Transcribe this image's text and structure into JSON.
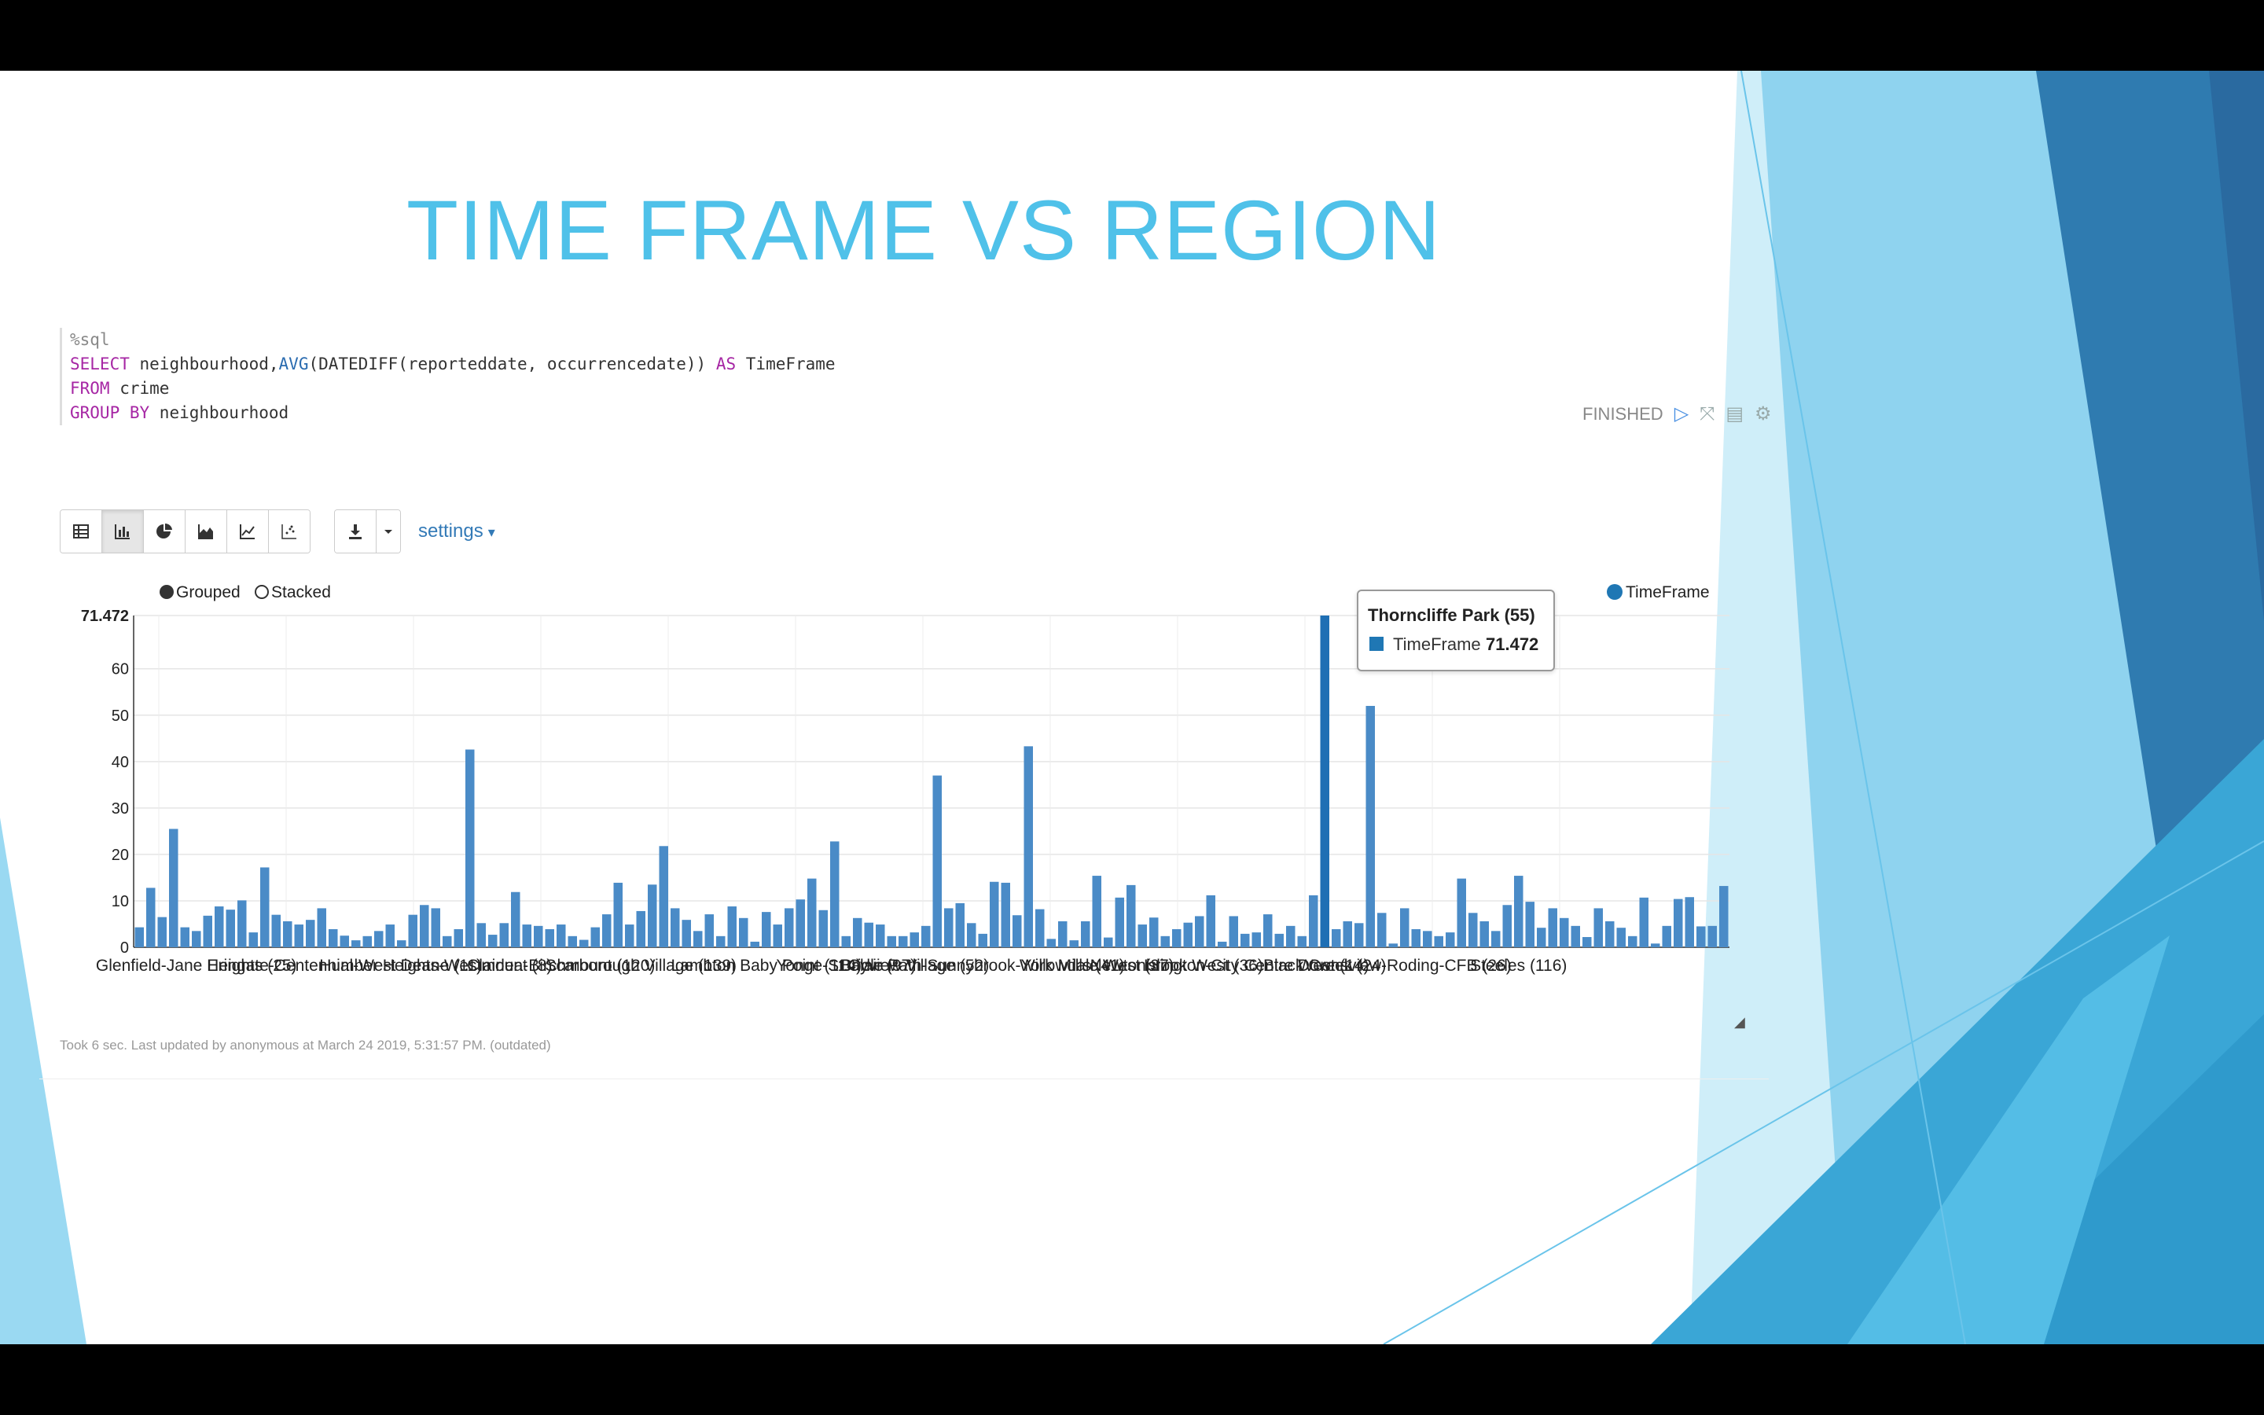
{
  "slide": {
    "title": "TIME FRAME VS REGION"
  },
  "code": {
    "lines": [
      {
        "parts": [
          {
            "t": "%sql",
            "c": "cm"
          }
        ]
      },
      {
        "parts": [
          {
            "t": "SELECT ",
            "c": "kw"
          },
          {
            "t": "neighbourhood,",
            "c": ""
          },
          {
            "t": "AVG",
            "c": "fn"
          },
          {
            "t": "(DATEDIFF(reporteddate, occurrencedate)) ",
            "c": ""
          },
          {
            "t": "AS ",
            "c": "kw"
          },
          {
            "t": "TimeFrame",
            "c": ""
          }
        ]
      },
      {
        "parts": [
          {
            "t": "FROM ",
            "c": "kw"
          },
          {
            "t": "crime",
            "c": ""
          }
        ]
      },
      {
        "parts": [
          {
            "t": "GROUP BY ",
            "c": "kw"
          },
          {
            "t": "neighbourhood",
            "c": ""
          }
        ]
      }
    ]
  },
  "status": {
    "label": "FINISHED"
  },
  "toolbar": {
    "settings_label": "settings",
    "buttons": [
      "table-icon",
      "bar-chart-icon",
      "pie-chart-icon",
      "area-chart-icon",
      "line-chart-icon",
      "scatter-chart-icon"
    ],
    "active": "bar-chart-icon"
  },
  "controls": {
    "grouped_label": "Grouped",
    "stacked_label": "Stacked",
    "grouped_selected": true
  },
  "tooltip": {
    "title": "Thorncliffe Park (55)",
    "series": "TimeFrame",
    "value": "71.472"
  },
  "footer": {
    "note": "Took 6 sec. Last updated by anonymous at March 24 2019, 5:31:57 PM. (outdated)"
  },
  "colors": {
    "bar": "#4a8bc7",
    "highlight": "#1f6fb4",
    "accent": "#4fc1e9"
  },
  "chart_data": {
    "type": "bar",
    "title": "",
    "xlabel": "",
    "ylabel": "",
    "ylim": [
      0,
      71.472
    ],
    "yticks": [
      0,
      10,
      20,
      30,
      40,
      50,
      60,
      71.472
    ],
    "ytick_labels": [
      "0",
      "10",
      "20",
      "30",
      "40",
      "50",
      "60",
      "71.472"
    ],
    "grid": true,
    "legend_position": "top-right",
    "series": [
      {
        "name": "TimeFrame",
        "values": [
          4.3,
          12.8,
          6.5,
          25.5,
          4.3,
          3.5,
          6.8,
          8.8,
          8.1,
          10.1,
          3.2,
          17.2,
          7.0,
          5.6,
          4.9,
          5.9,
          8.4,
          3.9,
          2.5,
          1.5,
          2.4,
          3.5,
          4.9,
          1.5,
          7.0,
          9.1,
          8.4,
          2.4,
          3.9,
          42.6,
          5.2,
          2.7,
          5.2,
          11.9,
          4.9,
          4.6,
          3.9,
          4.9,
          2.4,
          1.6,
          4.3,
          7.1,
          13.9,
          4.9,
          7.8,
          13.5,
          21.8,
          8.4,
          5.9,
          3.5,
          7.1,
          2.4,
          8.8,
          6.3,
          1.2,
          7.6,
          4.9,
          8.4,
          10.3,
          14.8,
          8.0,
          22.8,
          2.4,
          6.3,
          5.3,
          4.9,
          2.4,
          2.4,
          3.2,
          4.6,
          37.0,
          8.4,
          9.5,
          5.2,
          2.9,
          14.1,
          13.9,
          6.9,
          43.3,
          8.2,
          1.8,
          5.6,
          1.5,
          5.6,
          15.4,
          2.1,
          10.7,
          13.4,
          4.9,
          6.4,
          2.4,
          3.9,
          5.3,
          6.7,
          11.2,
          1.2,
          6.7,
          2.9,
          3.2,
          7.1,
          2.9,
          4.6,
          2.4,
          11.2,
          71.472,
          3.9,
          5.6,
          5.2,
          52.0,
          7.4,
          0.8,
          8.4,
          3.9,
          3.5,
          2.4,
          3.2,
          14.8,
          7.4,
          5.6,
          3.5,
          9.1,
          15.4,
          9.8,
          4.2,
          8.4,
          6.3,
          4.6,
          2.2,
          8.4,
          5.6,
          4.2,
          2.4,
          10.7,
          0.8,
          4.6,
          10.4,
          10.8,
          4.5,
          4.6,
          13.2
        ]
      }
    ],
    "highlight_index": 104,
    "x_tick_labels": [
      {
        "i": 5,
        "label": "Glenfield-Jane Heights (25)"
      },
      {
        "i": 18,
        "label": "Eringate-Centennial-West Deane (11)"
      },
      {
        "i": 26,
        "label": "Humber Heights-Westmount (8)"
      },
      {
        "i": 37,
        "label": "Clairlea-Birchmount (120)"
      },
      {
        "i": 44,
        "label": "Scarborough Village (139)"
      },
      {
        "i": 55,
        "label": "Lambton Baby Point (114)"
      },
      {
        "i": 62,
        "label": "Yonge-St.Clair (97)"
      },
      {
        "i": 68,
        "label": "Bayview Village (52)"
      },
      {
        "i": 74,
        "label": "Bridle Path-Sunnybrook-York Mills (41)"
      },
      {
        "i": 84,
        "label": "Willowdale West (37)"
      },
      {
        "i": 91,
        "label": "Newtonbrook West (36)"
      },
      {
        "i": 98,
        "label": "Islington-City Centre West (14)"
      },
      {
        "i": 104,
        "label": "Black Creek (24)"
      },
      {
        "i": 111,
        "label": "Downsview-Roding-CFB (26)"
      },
      {
        "i": 121,
        "label": "Steeles (116)"
      }
    ],
    "x_tick_labels_note": "overlapping labels as rendered"
  }
}
